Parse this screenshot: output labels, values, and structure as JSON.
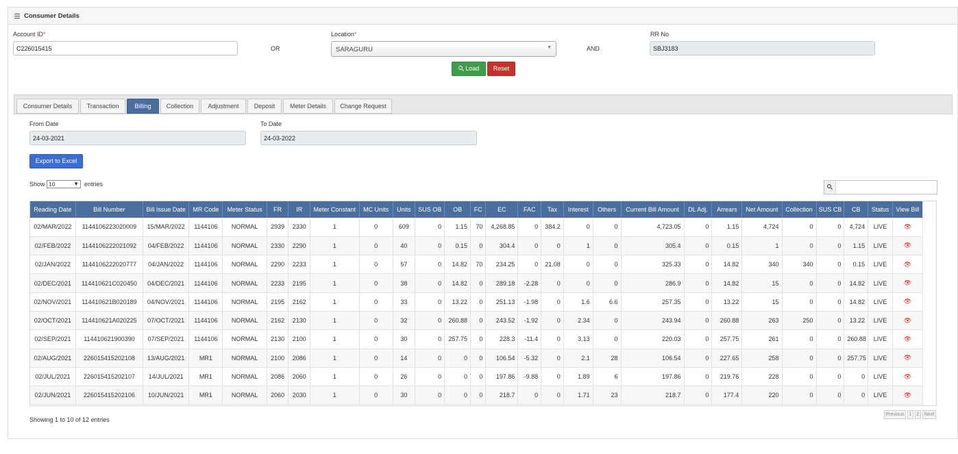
{
  "panel": {
    "title": "Consumer Details"
  },
  "form": {
    "account_label": "Account ID",
    "required_mark": "*",
    "account_value": "C226015415",
    "or_text": "OR",
    "location_label": "Location",
    "location_value": "SARAGURU",
    "and_text": "AND",
    "rr_label": "RR No",
    "rr_value": "SBJ3183",
    "load_label": "Load",
    "reset_label": "Reset"
  },
  "tabs": [
    "Consumer Details",
    "Transaction",
    "Billing",
    "Collection",
    "Adjustment",
    "Deposit",
    "Meter Details",
    "Change Request"
  ],
  "billing": {
    "from_label": "From Date",
    "from_value": "24-03-2021",
    "to_label": "To Date",
    "to_value": "24-03-2022",
    "export_label": "Export to Excel",
    "show_label": "Show",
    "show_value": "10",
    "entries_label": "entries",
    "info": "Showing 1 to 10 of 12 entries",
    "pager": {
      "previous": "Previous",
      "page1": "1",
      "page2": "2",
      "next": "Next"
    }
  },
  "table": {
    "columns": [
      "Reading Date",
      "Bill Number",
      "Bill Issue Date",
      "MR Code",
      "Meter Status",
      "FR",
      "IR",
      "Meter Constant",
      "MC Units",
      "Units",
      "SUS OB",
      "OB",
      "FC",
      "EC",
      "FAC",
      "Tax",
      "Interest",
      "Others",
      "Current Bill Amount",
      "DL Adj.",
      "Arrears",
      "Net Amount",
      "Collection",
      "SUS CB",
      "CB",
      "Status",
      "View Bill"
    ],
    "rows": [
      [
        "02/MAR/2022",
        "1144106223020009",
        "15/MAR/2022",
        "1144106",
        "NORMAL",
        "2939",
        "2330",
        "1",
        "0",
        "609",
        "0",
        "1.15",
        "70",
        "4,268.85",
        "0",
        "384.2",
        "0",
        "0",
        "4,723.05",
        "0",
        "1.15",
        "4,724",
        "0",
        "0",
        "4,724",
        "LIVE"
      ],
      [
        "02/FEB/2022",
        "1144106222021092",
        "04/FEB/2022",
        "1144106",
        "NORMAL",
        "2330",
        "2290",
        "1",
        "0",
        "40",
        "0",
        "0.15",
        "0",
        "304.4",
        "0",
        "0",
        "1",
        "0",
        "305.4",
        "0",
        "0.15",
        "1",
        "0",
        "0",
        "1.15",
        "LIVE"
      ],
      [
        "02/JAN/2022",
        "1144106222020777",
        "04/JAN/2022",
        "1144106",
        "NORMAL",
        "2290",
        "2233",
        "1",
        "0",
        "57",
        "0",
        "14.82",
        "70",
        "234.25",
        "0",
        "21.08",
        "0",
        "0",
        "325.33",
        "0",
        "14.82",
        "340",
        "340",
        "0",
        "0.15",
        "LIVE"
      ],
      [
        "02/DEC/2021",
        "114410621C020450",
        "04/DEC/2021",
        "1144106",
        "NORMAL",
        "2233",
        "2195",
        "1",
        "0",
        "38",
        "0",
        "14.82",
        "0",
        "289.18",
        "-2.28",
        "0",
        "0",
        "0",
        "286.9",
        "0",
        "14.82",
        "15",
        "0",
        "0",
        "14.82",
        "LIVE"
      ],
      [
        "02/NOV/2021",
        "114410621B020189",
        "04/NOV/2021",
        "1144106",
        "NORMAL",
        "2195",
        "2162",
        "1",
        "0",
        "33",
        "0",
        "13.22",
        "0",
        "251.13",
        "-1.98",
        "0",
        "1.6",
        "6.6",
        "257.35",
        "0",
        "13.22",
        "15",
        "0",
        "0",
        "14.82",
        "LIVE"
      ],
      [
        "02/OCT/2021",
        "114410621A020225",
        "07/OCT/2021",
        "1144106",
        "NORMAL",
        "2162",
        "2130",
        "1",
        "0",
        "32",
        "0",
        "260.88",
        "0",
        "243.52",
        "-1.92",
        "0",
        "2.34",
        "0",
        "243.94",
        "0",
        "260.88",
        "263",
        "250",
        "0",
        "13.22",
        "LIVE"
      ],
      [
        "02/SEP/2021",
        "114410621900390",
        "07/SEP/2021",
        "1144106",
        "NORMAL",
        "2130",
        "2100",
        "1",
        "0",
        "30",
        "0",
        "257.75",
        "0",
        "228.3",
        "-11.4",
        "0",
        "3.13",
        "0",
        "220.03",
        "0",
        "257.75",
        "261",
        "0",
        "0",
        "260.88",
        "LIVE"
      ],
      [
        "02/AUG/2021",
        "226015415202108",
        "13/AUG/2021",
        "MR1",
        "NORMAL",
        "2100",
        "2086",
        "1",
        "0",
        "14",
        "0",
        "0",
        "0",
        "106.54",
        "-5.32",
        "0",
        "2.1",
        "28",
        "106.54",
        "0",
        "227.65",
        "258",
        "0",
        "0",
        "257.75",
        "LIVE"
      ],
      [
        "02/JUL/2021",
        "226015415202107",
        "14/JUL/2021",
        "MR1",
        "NORMAL",
        "2086",
        "2060",
        "1",
        "0",
        "26",
        "0",
        "0",
        "0",
        "197.86",
        "-9.88",
        "0",
        "1.89",
        "6",
        "197.86",
        "0",
        "219.76",
        "228",
        "0",
        "0",
        "0",
        "LIVE"
      ],
      [
        "02/JUN/2021",
        "226015415202106",
        "10/JUN/2021",
        "MR1",
        "NORMAL",
        "2060",
        "2030",
        "1",
        "0",
        "30",
        "0",
        "0",
        "0",
        "218.7",
        "0",
        "0",
        "1.71",
        "23",
        "218.7",
        "0",
        "177.4",
        "220",
        "0",
        "0",
        "0",
        "LIVE"
      ]
    ]
  },
  "colors": {
    "header": "#4a6f9e",
    "load": "#3f9d4c",
    "reset": "#c9302c",
    "export": "#3a6fd0",
    "view_icon": "#e0201b"
  }
}
